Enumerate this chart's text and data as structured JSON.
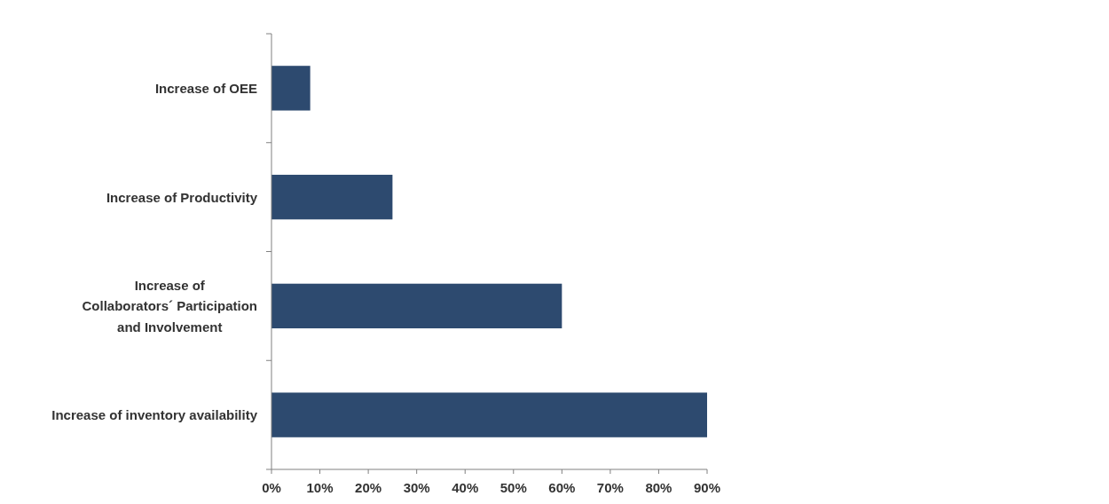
{
  "chart_data": {
    "type": "bar",
    "orientation": "horizontal",
    "categories": [
      "Increase of OEE",
      "Increase of Productivity",
      "Increase of\nCollaborators´ Participation\nand Involvement",
      "Increase of inventory availability"
    ],
    "values": [
      8,
      25,
      60,
      90
    ],
    "color": "#2d4a6f",
    "xlim": [
      0,
      90
    ],
    "xticks": [
      {
        "value": 0,
        "label": "0%"
      },
      {
        "value": 10,
        "label": "10%"
      },
      {
        "value": 20,
        "label": "20%"
      },
      {
        "value": 30,
        "label": "30%"
      },
      {
        "value": 40,
        "label": "40%"
      },
      {
        "value": 50,
        "label": "50%"
      },
      {
        "value": 60,
        "label": "60%"
      },
      {
        "value": 70,
        "label": "70%"
      },
      {
        "value": 80,
        "label": "80%"
      },
      {
        "value": 90,
        "label": "90%"
      }
    ]
  }
}
